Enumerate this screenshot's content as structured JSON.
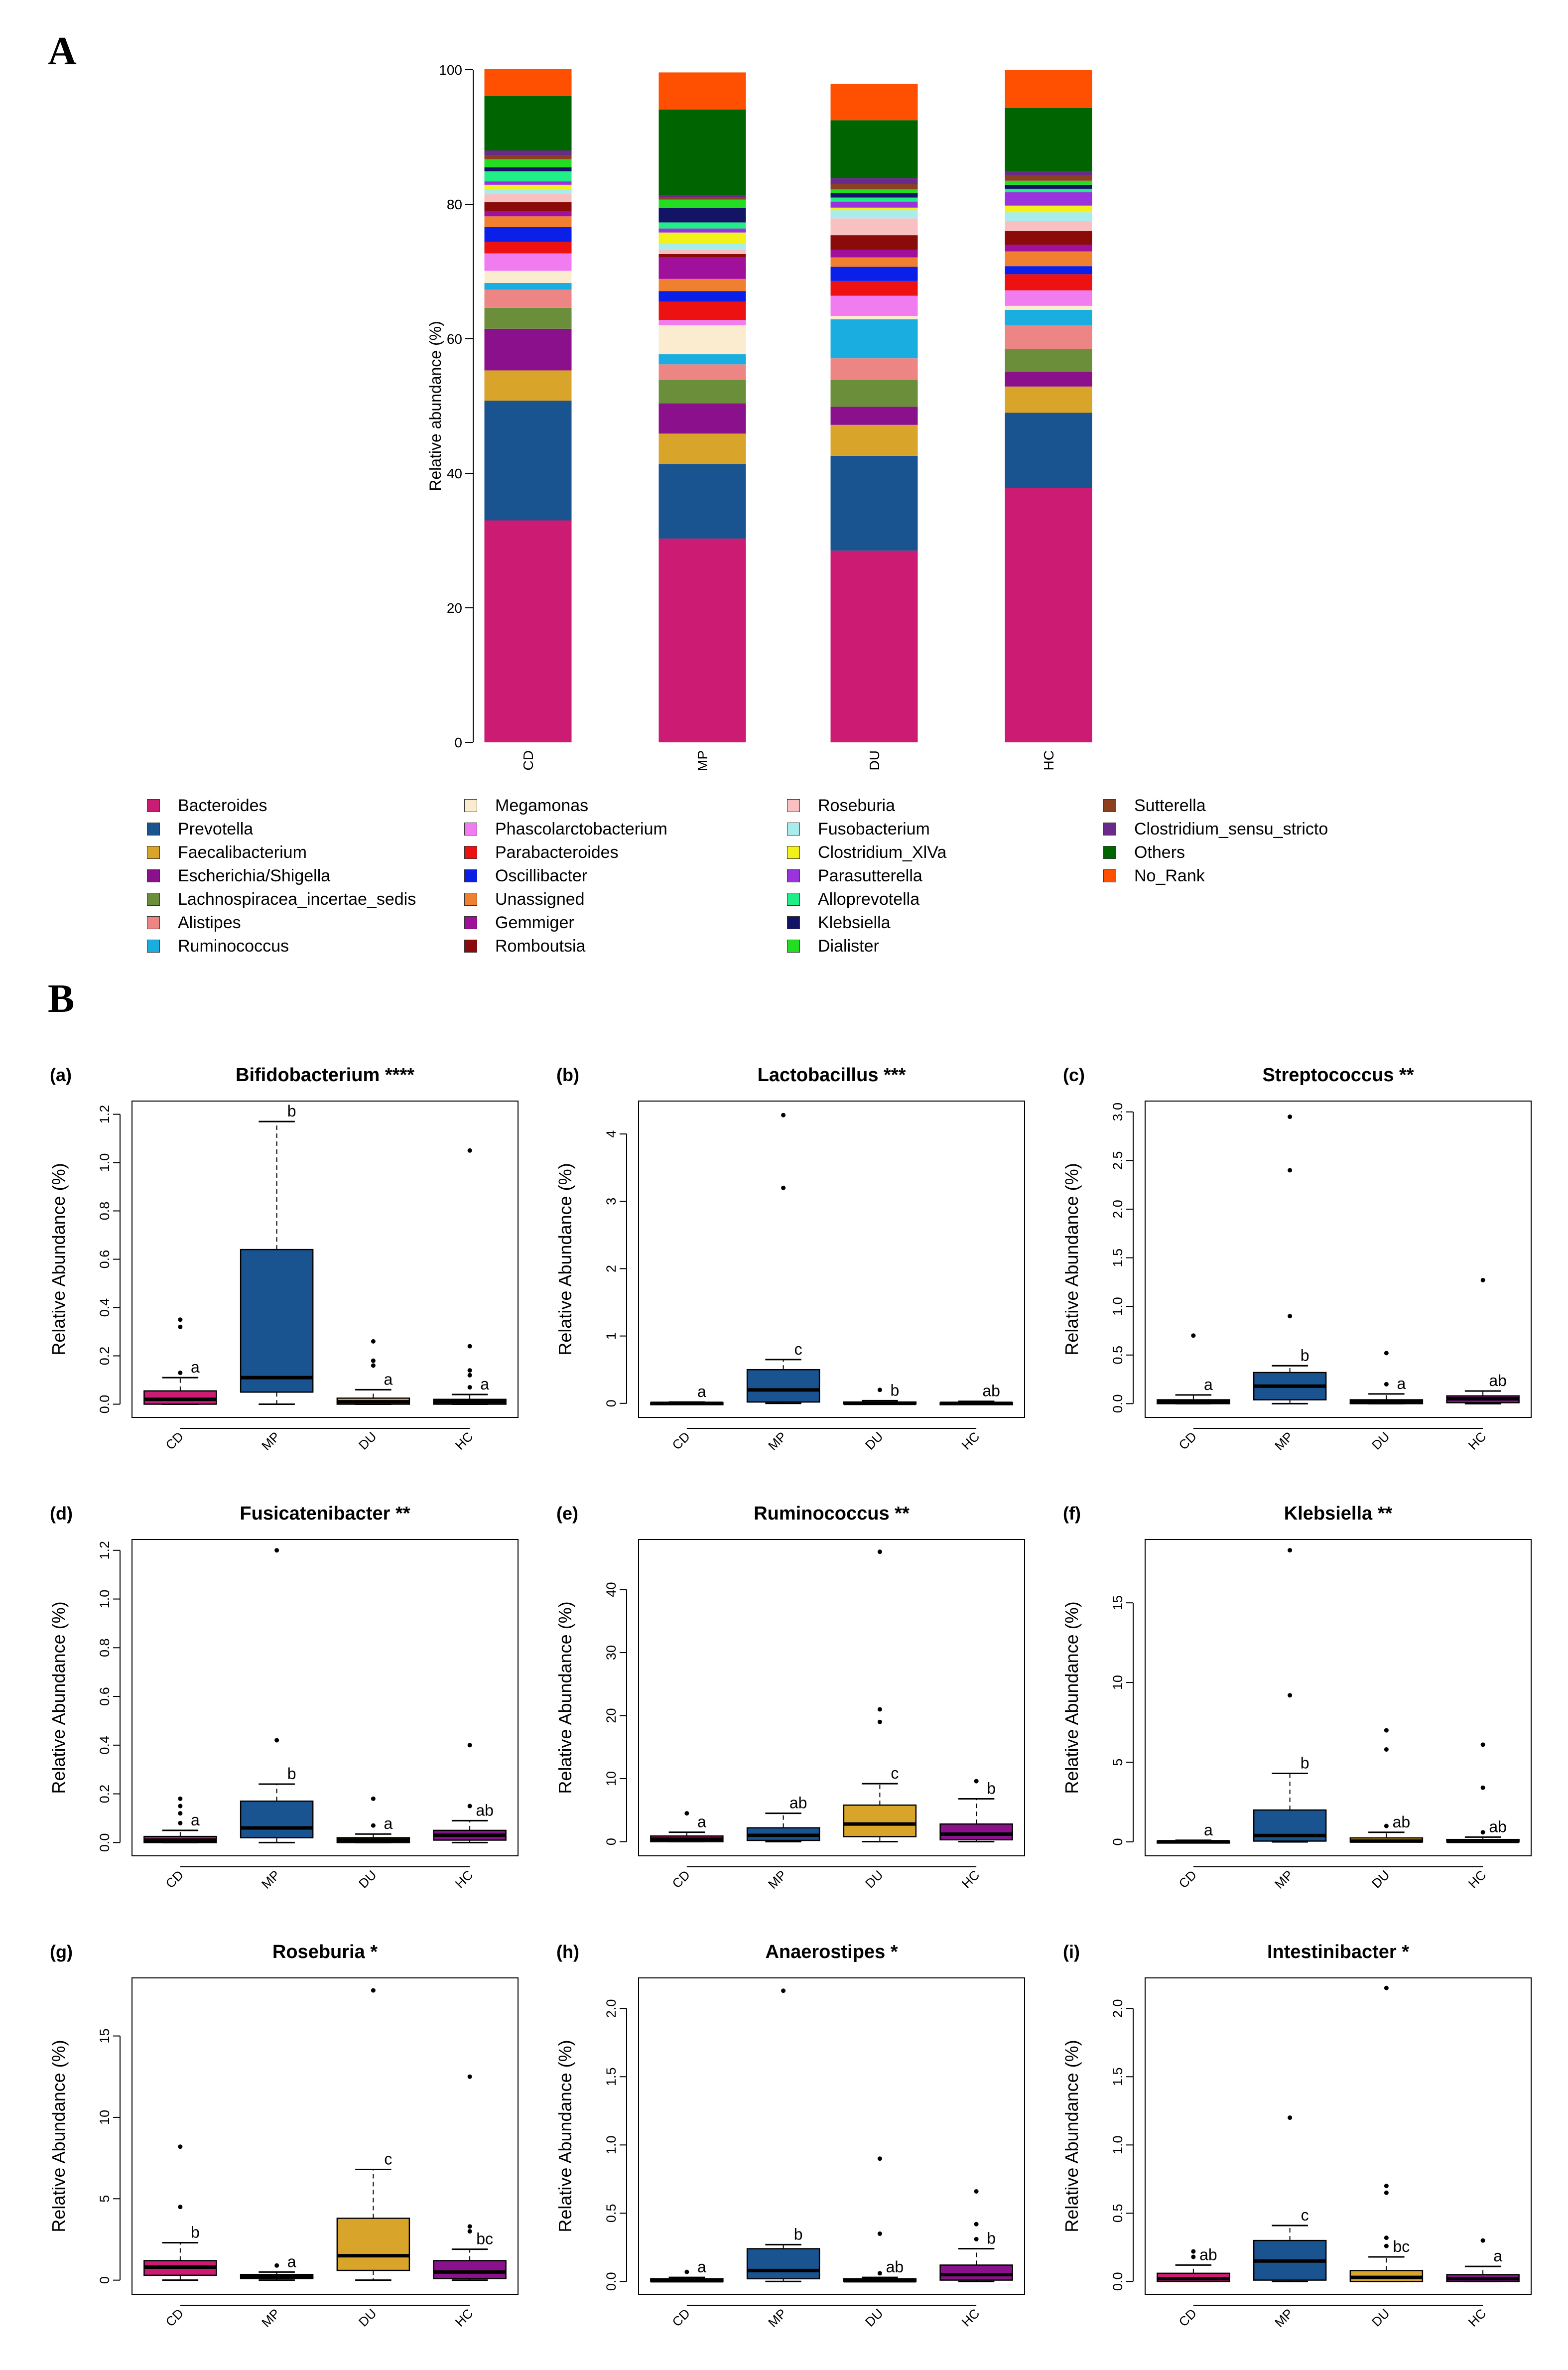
{
  "panel_labels": {
    "A": "A",
    "B": "B"
  },
  "chart_data": [
    {
      "type": "bar",
      "stacked": true,
      "panel": "A",
      "title": "",
      "ylabel": "Relative abundance (%)",
      "xlabel": "",
      "ylim": [
        0,
        100
      ],
      "yticks": [
        0,
        20,
        40,
        60,
        80,
        100
      ],
      "categories": [
        "CD",
        "MP",
        "DU",
        "HC"
      ],
      "legend_position": "bottom",
      "series": [
        {
          "name": "Bacteroides",
          "color": "#CB1B73",
          "values": [
            33,
            30.3,
            28.5,
            37.8
          ]
        },
        {
          "name": "Prevotella",
          "color": "#1A5490",
          "values": [
            17.8,
            11.1,
            14.1,
            11.2
          ]
        },
        {
          "name": "Faecalibacterium",
          "color": "#D9A42A",
          "values": [
            4.5,
            4.5,
            4.6,
            3.9
          ]
        },
        {
          "name": "Escherichia/Shigella",
          "color": "#8B108B",
          "values": [
            6.2,
            4.5,
            2.7,
            2.2
          ]
        },
        {
          "name": "Lachnospiracea_incertae_sedis",
          "color": "#6B8E3A",
          "values": [
            3.1,
            3.5,
            4.0,
            3.4
          ]
        },
        {
          "name": "Alistipes",
          "color": "#EE8585",
          "values": [
            2.7,
            2.3,
            3.2,
            3.5
          ]
        },
        {
          "name": "Ruminococcus",
          "color": "#1AAEE0",
          "values": [
            1.0,
            1.5,
            5.8,
            2.3
          ]
        },
        {
          "name": "Megamonas",
          "color": "#FBECD0",
          "values": [
            1.8,
            4.3,
            0.5,
            0.6
          ]
        },
        {
          "name": "Phascolarctobacterium",
          "color": "#F07CF0",
          "values": [
            2.6,
            0.8,
            3.0,
            2.3
          ]
        },
        {
          "name": "Parabacteroides",
          "color": "#EE1111",
          "values": [
            1.7,
            2.7,
            2.2,
            2.4
          ]
        },
        {
          "name": "Oscillibacter",
          "color": "#0A1FE8",
          "values": [
            2.2,
            1.6,
            2.1,
            1.2
          ]
        },
        {
          "name": "Unassigned",
          "color": "#F08030",
          "values": [
            1.6,
            1.8,
            1.4,
            2.2
          ]
        },
        {
          "name": "Gemmiger",
          "color": "#A0109A",
          "values": [
            0.8,
            3.2,
            1.1,
            1.0
          ]
        },
        {
          "name": "Romboutsia",
          "color": "#8B0A0A",
          "values": [
            1.3,
            0.5,
            2.2,
            2.0
          ]
        },
        {
          "name": "Roseburia",
          "color": "#F8C0C0",
          "values": [
            1.2,
            0.6,
            2.5,
            1.5
          ]
        },
        {
          "name": "Fusobacterium",
          "color": "#A8ECEC",
          "values": [
            0.8,
            0.9,
            1.2,
            1.3
          ]
        },
        {
          "name": "Clostridium_XlVa",
          "color": "#F2F21A",
          "values": [
            0.6,
            1.7,
            0.4,
            1.0
          ]
        },
        {
          "name": "Parasutterella",
          "color": "#9933DD",
          "values": [
            0.5,
            0.6,
            0.9,
            2.0
          ]
        },
        {
          "name": "Alloprevotella",
          "color": "#22EE88",
          "values": [
            1.5,
            0.9,
            0.6,
            0.5
          ]
        },
        {
          "name": "Klebsiella",
          "color": "#141466",
          "values": [
            0.6,
            2.2,
            0.7,
            0.6
          ]
        },
        {
          "name": "Dialister",
          "color": "#22DD22",
          "values": [
            1.2,
            1.2,
            0.5,
            0.6
          ]
        },
        {
          "name": "Sutterella",
          "color": "#8B4020",
          "values": [
            0.6,
            0.4,
            0.8,
            0.8
          ]
        },
        {
          "name": "Clostridium_sensu_stricto",
          "color": "#6A2A8A",
          "values": [
            0.7,
            0.3,
            0.9,
            0.6
          ]
        },
        {
          "name": "Others",
          "color": "#006400",
          "values": [
            8.1,
            12.7,
            8.6,
            9.4
          ]
        },
        {
          "name": "No_Rank",
          "color": "#FF4F00",
          "values": [
            4.0,
            5.5,
            5.4,
            5.7
          ]
        }
      ]
    },
    {
      "type": "box",
      "panel": "B",
      "sub": "(a)",
      "title": "Bifidobacterium ****",
      "ylabel": "Relative Abundance (%)",
      "ylim": [
        -0.03,
        1.23
      ],
      "yticks": [
        "0.0",
        "0.2",
        "0.4",
        "0.6",
        "0.8",
        "1.0",
        "1.2"
      ],
      "categories": [
        "CD",
        "MP",
        "DU",
        "HC"
      ],
      "boxes": [
        {
          "q1": 0.0,
          "median": 0.02,
          "q3": 0.055,
          "lower": 0.0,
          "upper": 0.11,
          "outliers": [
            0.13,
            0.35,
            0.32
          ],
          "letter": "a"
        },
        {
          "q1": 0.05,
          "median": 0.11,
          "q3": 0.64,
          "lower": 0.0,
          "upper": 1.17,
          "outliers": [],
          "letter": "b"
        },
        {
          "q1": 0.0,
          "median": 0.01,
          "q3": 0.025,
          "lower": 0.0,
          "upper": 0.06,
          "outliers": [
            0.16,
            0.18,
            0.26
          ],
          "letter": "a"
        },
        {
          "q1": 0.0,
          "median": 0.01,
          "q3": 0.02,
          "lower": 0.0,
          "upper": 0.04,
          "outliers": [
            0.07,
            0.12,
            0.14,
            0.24,
            1.05
          ],
          "letter": "a"
        }
      ]
    },
    {
      "type": "box",
      "panel": "B",
      "sub": "(b)",
      "title": "Lactobacillus ***",
      "ylabel": "Relative Abundance (%)",
      "ylim": [
        -0.12,
        4.4
      ],
      "yticks": [
        "0",
        "1",
        "2",
        "3",
        "4"
      ],
      "categories": [
        "CD",
        "MP",
        "DU",
        "HC"
      ],
      "boxes": [
        {
          "q1": 0.0,
          "median": 0.0,
          "q3": 0.01,
          "lower": 0.0,
          "upper": 0.02,
          "outliers": [],
          "letter": "a"
        },
        {
          "q1": 0.02,
          "median": 0.2,
          "q3": 0.5,
          "lower": 0.0,
          "upper": 0.65,
          "outliers": [
            3.2,
            4.28
          ],
          "letter": "c"
        },
        {
          "q1": 0.0,
          "median": 0.0,
          "q3": 0.02,
          "lower": 0.0,
          "upper": 0.04,
          "outliers": [
            0.2
          ],
          "letter": "b"
        },
        {
          "q1": 0.0,
          "median": 0.0,
          "q3": 0.01,
          "lower": 0.0,
          "upper": 0.03,
          "outliers": [],
          "letter": "ab"
        }
      ]
    },
    {
      "type": "box",
      "panel": "B",
      "sub": "(c)",
      "title": "Streptococcus **",
      "ylabel": "Relative Abundance (%)",
      "ylim": [
        -0.08,
        3.05
      ],
      "yticks": [
        "0.0",
        "0.5",
        "1.0",
        "1.5",
        "2.0",
        "2.5",
        "3.0"
      ],
      "categories": [
        "CD",
        "MP",
        "DU",
        "HC"
      ],
      "boxes": [
        {
          "q1": 0.0,
          "median": 0.02,
          "q3": 0.04,
          "lower": 0.0,
          "upper": 0.09,
          "outliers": [
            0.7
          ],
          "letter": "a"
        },
        {
          "q1": 0.04,
          "median": 0.18,
          "q3": 0.32,
          "lower": 0.0,
          "upper": 0.39,
          "outliers": [
            0.9,
            2.4,
            2.95
          ],
          "letter": "b"
        },
        {
          "q1": 0.0,
          "median": 0.02,
          "q3": 0.04,
          "lower": 0.0,
          "upper": 0.1,
          "outliers": [
            0.2,
            0.52
          ],
          "letter": "a"
        },
        {
          "q1": 0.01,
          "median": 0.05,
          "q3": 0.08,
          "lower": 0.0,
          "upper": 0.13,
          "outliers": [
            1.27
          ],
          "letter": "ab"
        }
      ]
    },
    {
      "type": "box",
      "panel": "B",
      "sub": "(d)",
      "title": "Fusicatenibacter **",
      "ylabel": "Relative Abundance (%)",
      "ylim": [
        -0.03,
        1.22
      ],
      "yticks": [
        "0.0",
        "0.2",
        "0.4",
        "0.6",
        "0.8",
        "1.0",
        "1.2"
      ],
      "categories": [
        "CD",
        "MP",
        "DU",
        "HC"
      ],
      "boxes": [
        {
          "q1": 0.0,
          "median": 0.01,
          "q3": 0.025,
          "lower": 0.0,
          "upper": 0.05,
          "outliers": [
            0.08,
            0.12,
            0.15,
            0.18
          ],
          "letter": "a"
        },
        {
          "q1": 0.02,
          "median": 0.06,
          "q3": 0.17,
          "lower": 0.0,
          "upper": 0.24,
          "outliers": [
            0.42,
            1.2
          ],
          "letter": "b"
        },
        {
          "q1": 0.0,
          "median": 0.01,
          "q3": 0.02,
          "lower": 0.0,
          "upper": 0.035,
          "outliers": [
            0.07,
            0.18
          ],
          "letter": "a"
        },
        {
          "q1": 0.01,
          "median": 0.03,
          "q3": 0.05,
          "lower": 0.0,
          "upper": 0.09,
          "outliers": [
            0.15,
            0.4
          ],
          "letter": "ab"
        }
      ]
    },
    {
      "type": "box",
      "panel": "B",
      "sub": "(e)",
      "title": "Ruminococcus **",
      "ylabel": "Relative Abundance (%)",
      "ylim": [
        -1.3,
        47
      ],
      "yticks": [
        "0",
        "10",
        "20",
        "30",
        "40"
      ],
      "categories": [
        "CD",
        "MP",
        "DU",
        "HC"
      ],
      "boxes": [
        {
          "q1": 0.0,
          "median": 0.4,
          "q3": 0.9,
          "lower": 0.0,
          "upper": 1.5,
          "outliers": [
            4.5
          ],
          "letter": "a"
        },
        {
          "q1": 0.2,
          "median": 1.0,
          "q3": 2.2,
          "lower": 0.0,
          "upper": 4.5,
          "outliers": [],
          "letter": "ab"
        },
        {
          "q1": 0.8,
          "median": 2.8,
          "q3": 5.8,
          "lower": 0.0,
          "upper": 9.2,
          "outliers": [
            19,
            21,
            46
          ],
          "letter": "c"
        },
        {
          "q1": 0.3,
          "median": 1.2,
          "q3": 2.8,
          "lower": 0.0,
          "upper": 6.8,
          "outliers": [
            9.6
          ],
          "letter": "b"
        }
      ]
    },
    {
      "type": "box",
      "panel": "B",
      "sub": "(f)",
      "title": "Klebsiella **",
      "ylabel": "Relative Abundance (%)",
      "ylim": [
        -0.5,
        18.6
      ],
      "yticks": [
        "0",
        "5",
        "10",
        "15"
      ],
      "categories": [
        "CD",
        "MP",
        "DU",
        "HC"
      ],
      "boxes": [
        {
          "q1": 0.0,
          "median": 0.01,
          "q3": 0.05,
          "lower": 0.0,
          "upper": 0.1,
          "outliers": [],
          "letter": "a"
        },
        {
          "q1": 0.05,
          "median": 0.4,
          "q3": 2.0,
          "lower": 0.0,
          "upper": 4.3,
          "outliers": [
            9.2,
            18.3
          ],
          "letter": "b"
        },
        {
          "q1": 0.0,
          "median": 0.05,
          "q3": 0.25,
          "lower": 0.0,
          "upper": 0.6,
          "outliers": [
            1.0,
            5.8,
            7.0
          ],
          "letter": "ab"
        },
        {
          "q1": 0.0,
          "median": 0.03,
          "q3": 0.15,
          "lower": 0.0,
          "upper": 0.3,
          "outliers": [
            0.6,
            3.4,
            6.1
          ],
          "letter": "ab"
        }
      ]
    },
    {
      "type": "box",
      "panel": "B",
      "sub": "(g)",
      "title": "Roseburia *",
      "ylabel": "Relative Abundance (%)",
      "ylim": [
        -0.5,
        18.2
      ],
      "yticks": [
        "0",
        "5",
        "10",
        "15"
      ],
      "categories": [
        "CD",
        "MP",
        "DU",
        "HC"
      ],
      "boxes": [
        {
          "q1": 0.3,
          "median": 0.8,
          "q3": 1.2,
          "lower": 0.0,
          "upper": 2.3,
          "outliers": [
            4.5,
            8.2
          ],
          "letter": "b"
        },
        {
          "q1": 0.1,
          "median": 0.2,
          "q3": 0.35,
          "lower": 0.0,
          "upper": 0.5,
          "outliers": [
            0.9
          ],
          "letter": "a"
        },
        {
          "q1": 0.6,
          "median": 1.5,
          "q3": 3.8,
          "lower": 0.0,
          "upper": 6.8,
          "outliers": [
            17.8
          ],
          "letter": "c"
        },
        {
          "q1": 0.1,
          "median": 0.5,
          "q3": 1.2,
          "lower": 0.0,
          "upper": 1.9,
          "outliers": [
            3.0,
            3.3,
            12.5
          ],
          "letter": "bc"
        }
      ]
    },
    {
      "type": "box",
      "panel": "B",
      "sub": "(h)",
      "title": "Anaerostipes *",
      "ylabel": "Relative Abundance (%)",
      "ylim": [
        -0.05,
        2.18
      ],
      "yticks": [
        "0.0",
        "0.5",
        "1.0",
        "1.5",
        "2.0"
      ],
      "categories": [
        "CD",
        "MP",
        "DU",
        "HC"
      ],
      "boxes": [
        {
          "q1": 0.0,
          "median": 0.005,
          "q3": 0.02,
          "lower": 0.0,
          "upper": 0.03,
          "outliers": [
            0.07
          ],
          "letter": "a"
        },
        {
          "q1": 0.02,
          "median": 0.08,
          "q3": 0.24,
          "lower": 0.0,
          "upper": 0.27,
          "outliers": [
            2.13
          ],
          "letter": "b"
        },
        {
          "q1": 0.0,
          "median": 0.005,
          "q3": 0.02,
          "lower": 0.0,
          "upper": 0.03,
          "outliers": [
            0.06,
            0.35,
            0.9
          ],
          "letter": "ab"
        },
        {
          "q1": 0.01,
          "median": 0.05,
          "q3": 0.12,
          "lower": 0.0,
          "upper": 0.24,
          "outliers": [
            0.31,
            0.42,
            0.66
          ],
          "letter": "b"
        }
      ]
    },
    {
      "type": "box",
      "panel": "B",
      "sub": "(i)",
      "title": "Intestinibacter *",
      "ylabel": "Relative Abundance (%)",
      "ylim": [
        -0.05,
        2.18
      ],
      "yticks": [
        "0.0",
        "0.5",
        "1.0",
        "1.5",
        "2.0"
      ],
      "categories": [
        "CD",
        "MP",
        "DU",
        "HC"
      ],
      "boxes": [
        {
          "q1": 0.0,
          "median": 0.02,
          "q3": 0.06,
          "lower": 0.0,
          "upper": 0.12,
          "outliers": [
            0.18,
            0.22
          ],
          "letter": "ab"
        },
        {
          "q1": 0.01,
          "median": 0.15,
          "q3": 0.3,
          "lower": 0.0,
          "upper": 0.41,
          "outliers": [
            1.2
          ],
          "letter": "c"
        },
        {
          "q1": 0.0,
          "median": 0.03,
          "q3": 0.08,
          "lower": 0.0,
          "upper": 0.18,
          "outliers": [
            0.26,
            0.32,
            0.65,
            0.7,
            2.15
          ],
          "letter": "bc"
        },
        {
          "q1": 0.0,
          "median": 0.02,
          "q3": 0.05,
          "lower": 0.0,
          "upper": 0.11,
          "outliers": [
            0.3
          ],
          "letter": "a"
        }
      ]
    }
  ]
}
